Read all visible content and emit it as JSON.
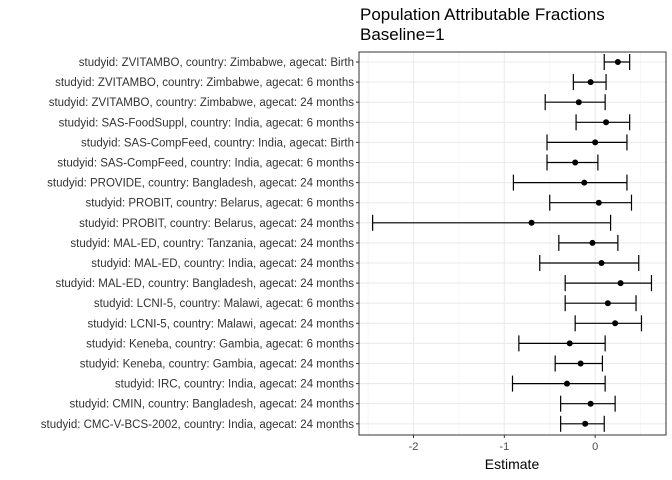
{
  "chart_data": {
    "type": "forest",
    "title": "Population Attributable Fractions",
    "subtitle": "Baseline=1",
    "xlabel": "Estimate",
    "ylabel": "",
    "xlim": [
      -2.6,
      0.78
    ],
    "xticks": [
      -2,
      -1,
      0
    ],
    "xtick_labels": [
      "-2",
      "-1",
      "0"
    ],
    "grid": true,
    "categories": [
      "studyid: ZVITAMBO, country: Zimbabwe, agecat: Birth",
      "studyid: ZVITAMBO, country: Zimbabwe, agecat: 6 months",
      "studyid: ZVITAMBO, country: Zimbabwe, agecat: 24 months",
      "studyid: SAS-FoodSuppl, country: India, agecat: 6 months",
      "studyid: SAS-CompFeed, country: India, agecat: Birth",
      "studyid: SAS-CompFeed, country: India, agecat: 6 months",
      "studyid: PROVIDE, country: Bangladesh, agecat: 24 months",
      "studyid: PROBIT, country: Belarus, agecat: 6 months",
      "studyid: PROBIT, country: Belarus, agecat: 24 months",
      "studyid: MAL-ED, country: Tanzania, agecat: 24 months",
      "studyid: MAL-ED, country: India, agecat: 24 months",
      "studyid: MAL-ED, country: Bangladesh, agecat: 24 months",
      "studyid: LCNI-5, country: Malawi, agecat: 6 months",
      "studyid: LCNI-5, country: Malawi, agecat: 24 months",
      "studyid: Keneba, country: Gambia, agecat: 6 months",
      "studyid: Keneba, country: Gambia, agecat: 24 months",
      "studyid: IRC, country: India, agecat: 24 months",
      "studyid: CMIN, country: Bangladesh, agecat: 24 months",
      "studyid: CMC-V-BCS-2002, country: India, agecat: 24 months"
    ],
    "estimate": [
      0.25,
      -0.05,
      -0.18,
      0.12,
      0.0,
      -0.22,
      -0.12,
      0.04,
      -0.7,
      -0.03,
      0.07,
      0.28,
      0.14,
      0.22,
      -0.28,
      -0.16,
      -0.31,
      -0.05,
      -0.11
    ],
    "lower": [
      0.1,
      -0.24,
      -0.55,
      -0.21,
      -0.53,
      -0.53,
      -0.9,
      -0.5,
      -2.45,
      -0.4,
      -0.61,
      -0.33,
      -0.33,
      -0.22,
      -0.84,
      -0.44,
      -0.91,
      -0.38,
      -0.38
    ],
    "upper": [
      0.38,
      0.12,
      0.11,
      0.38,
      0.35,
      0.03,
      0.35,
      0.4,
      0.17,
      0.25,
      0.48,
      0.62,
      0.45,
      0.51,
      0.11,
      0.08,
      0.11,
      0.22,
      0.1
    ]
  }
}
